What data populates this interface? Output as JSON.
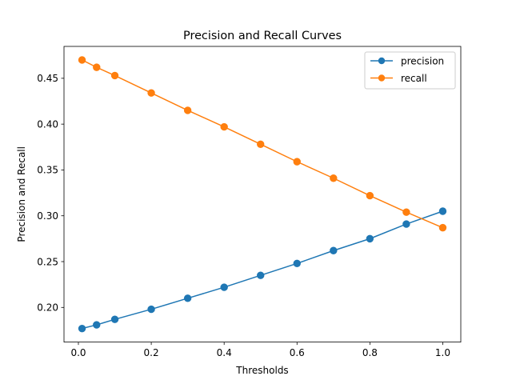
{
  "chart_data": {
    "type": "line",
    "title": "Precision and Recall Curves",
    "xlabel": "Thresholds",
    "ylabel": "Precision and Recall",
    "x": [
      0.01,
      0.05,
      0.1,
      0.2,
      0.3,
      0.4,
      0.5,
      0.6,
      0.7,
      0.8,
      0.9,
      1.0
    ],
    "series": [
      {
        "name": "precision",
        "color": "#1f77b4",
        "values": [
          0.177,
          0.181,
          0.187,
          0.198,
          0.21,
          0.222,
          0.235,
          0.248,
          0.262,
          0.275,
          0.291,
          0.305
        ]
      },
      {
        "name": "recall",
        "color": "#ff7f0e",
        "values": [
          0.47,
          0.462,
          0.453,
          0.434,
          0.415,
          0.397,
          0.378,
          0.359,
          0.341,
          0.322,
          0.304,
          0.287
        ]
      }
    ],
    "xlim": [
      -0.0395,
      1.0495
    ],
    "ylim": [
      0.1622,
      0.4848
    ],
    "xticks": [
      0.0,
      0.2,
      0.4,
      0.6,
      0.8,
      1.0
    ],
    "xtick_labels": [
      "0.0",
      "0.2",
      "0.4",
      "0.6",
      "0.8",
      "1.0"
    ],
    "yticks": [
      0.2,
      0.25,
      0.3,
      0.35,
      0.4,
      0.45
    ],
    "ytick_labels": [
      "0.20",
      "0.25",
      "0.30",
      "0.35",
      "0.40",
      "0.45"
    ],
    "grid": false,
    "legend": "upper right",
    "marker": "circle"
  }
}
